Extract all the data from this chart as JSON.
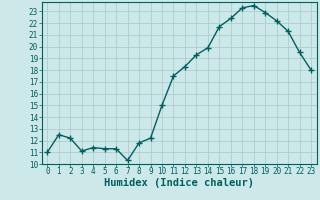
{
  "x": [
    0,
    1,
    2,
    3,
    4,
    5,
    6,
    7,
    8,
    9,
    10,
    11,
    12,
    13,
    14,
    15,
    16,
    17,
    18,
    19,
    20,
    21,
    22,
    23
  ],
  "y": [
    11.0,
    12.5,
    12.2,
    11.1,
    11.4,
    11.3,
    11.3,
    10.3,
    11.8,
    12.2,
    15.0,
    17.5,
    18.3,
    19.3,
    19.9,
    21.7,
    22.4,
    23.3,
    23.5,
    22.9,
    22.2,
    21.3,
    19.5,
    18.0
  ],
  "line_color": "#006060",
  "marker": "+",
  "marker_size": 4,
  "bg_color": "#cce8e8",
  "grid_color_major": "#aac8c8",
  "grid_color_minor": "#bbdada",
  "xlabel": "Humidex (Indice chaleur)",
  "ylabel": "",
  "xlim": [
    -0.5,
    23.5
  ],
  "ylim": [
    10,
    23.8
  ],
  "yticks": [
    10,
    11,
    12,
    13,
    14,
    15,
    16,
    17,
    18,
    19,
    20,
    21,
    22,
    23
  ],
  "xticks": [
    0,
    1,
    2,
    3,
    4,
    5,
    6,
    7,
    8,
    9,
    10,
    11,
    12,
    13,
    14,
    15,
    16,
    17,
    18,
    19,
    20,
    21,
    22,
    23
  ],
  "tick_color": "#006060",
  "spine_color": "#006060",
  "xlabel_fontsize": 7.5,
  "tick_fontsize": 5.5,
  "linewidth": 1.0
}
